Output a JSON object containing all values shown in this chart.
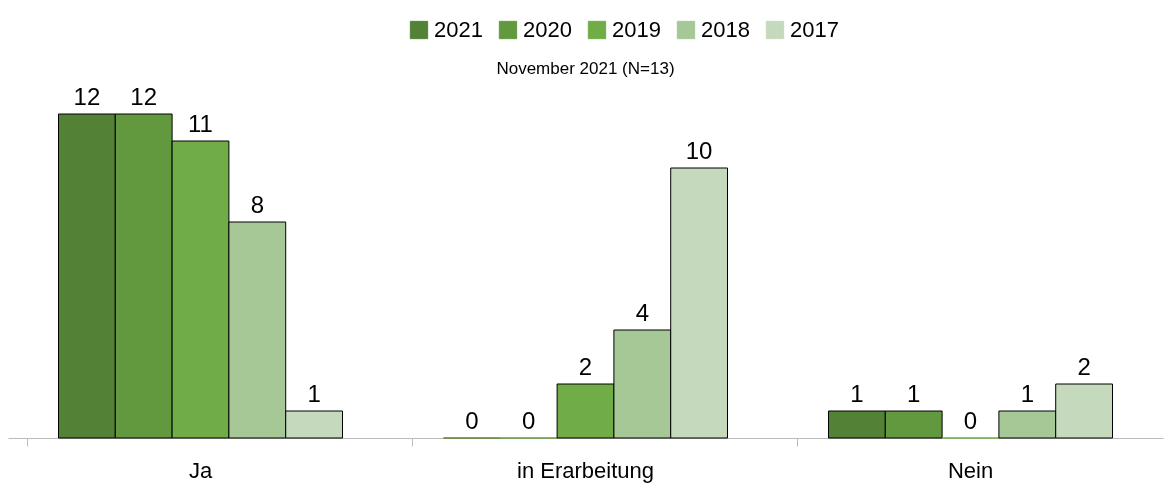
{
  "chart_data": {
    "type": "bar",
    "title": "November 2021 (N=13)",
    "categories": [
      "Ja",
      "in Erarbeitung",
      "Nein"
    ],
    "series": [
      {
        "name": "2021",
        "color": "#538135",
        "values": [
          12,
          0,
          1
        ]
      },
      {
        "name": "2020",
        "color": "#62993e",
        "values": [
          12,
          0,
          1
        ]
      },
      {
        "name": "2019",
        "color": "#70ad47",
        "values": [
          11,
          2,
          0
        ]
      },
      {
        "name": "2018",
        "color": "#a6c796",
        "values": [
          8,
          4,
          1
        ]
      },
      {
        "name": "2017",
        "color": "#c5d9bd",
        "values": [
          1,
          10,
          2
        ]
      }
    ],
    "data_labels": true,
    "legend": "top",
    "grid": false
  }
}
